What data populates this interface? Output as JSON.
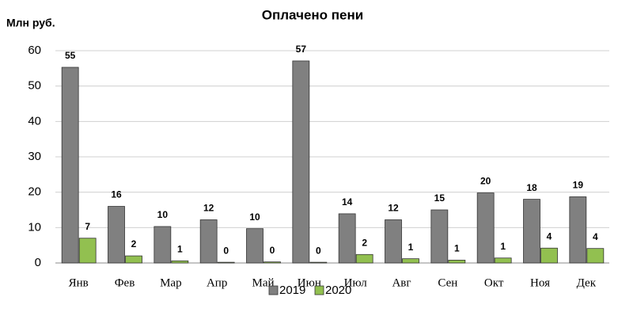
{
  "chart_data": {
    "type": "bar",
    "title": "Оплачено пени",
    "y_label": "Млн руб.",
    "categories": [
      "Янв",
      "Фев",
      "Мар",
      "Апр",
      "Май",
      "Июн",
      "Июл",
      "Авг",
      "Сен",
      "Окт",
      "Ноя",
      "Дек"
    ],
    "series": [
      {
        "name": "2019",
        "color": "#808080",
        "values": [
          55.3,
          16,
          10.3,
          12.2,
          9.7,
          57.1,
          13.9,
          12.2,
          15,
          19.8,
          18,
          18.7
        ],
        "value_labels": [
          "55",
          "16",
          "10",
          "12",
          "10",
          "57",
          "14",
          "12",
          "15",
          "20",
          "18",
          "19"
        ]
      },
      {
        "name": "2020",
        "color": "#92c050",
        "values": [
          7,
          2,
          0.6,
          0.2,
          0.3,
          0.2,
          2.4,
          1.2,
          0.8,
          1.4,
          4.2,
          4.1
        ],
        "value_labels": [
          "7",
          "2",
          "1",
          "0",
          "0",
          "0",
          "2",
          "1",
          "1",
          "1",
          "4",
          "4"
        ]
      }
    ],
    "ylim": [
      0,
      60
    ],
    "yticks": [
      0,
      10,
      20,
      30,
      40,
      50,
      60
    ],
    "grid": true,
    "legend": "bottom"
  }
}
